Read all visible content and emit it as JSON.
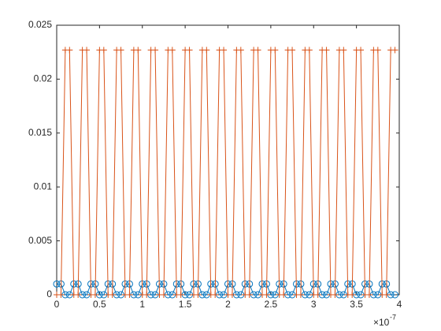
{
  "chart_data": {
    "type": "line",
    "x": [
      0,
      5e-09,
      1e-08,
      1.5e-08,
      2e-08,
      2.5e-08,
      3e-08,
      3.5e-08,
      4e-08,
      4.5e-08,
      5e-08,
      5.5e-08,
      6e-08,
      6.5e-08,
      7e-08,
      7.5e-08,
      8e-08,
      8.5e-08,
      9e-08,
      9.5e-08,
      1e-07,
      1.05e-07,
      1.1e-07,
      1.15e-07,
      1.2e-07,
      1.25e-07,
      1.3e-07,
      1.35e-07,
      1.4e-07,
      1.45e-07,
      1.5e-07,
      1.55e-07,
      1.6e-07,
      1.65e-07,
      1.7e-07,
      1.75e-07,
      1.8e-07,
      1.85e-07,
      1.9e-07,
      1.95e-07,
      2e-07,
      2.05e-07,
      2.1e-07,
      2.15e-07,
      2.2e-07,
      2.25e-07,
      2.3e-07,
      2.35e-07,
      2.4e-07,
      2.45e-07,
      2.5e-07,
      2.55e-07,
      2.6e-07,
      2.65e-07,
      2.7e-07,
      2.75e-07,
      2.8e-07,
      2.85e-07,
      2.9e-07,
      2.95e-07,
      3e-07,
      3.05e-07,
      3.1e-07,
      3.15e-07,
      3.2e-07,
      3.25e-07,
      3.3e-07,
      3.35e-07,
      3.4e-07,
      3.45e-07,
      3.5e-07,
      3.55e-07,
      3.6e-07,
      3.65e-07,
      3.7e-07,
      3.75e-07,
      3.8e-07,
      3.85e-07,
      3.9e-07,
      3.95e-07
    ],
    "series": [
      {
        "color": "#0072bd",
        "marker": "o",
        "values": [
          0.001,
          0.001,
          0,
          0,
          0.001,
          0.001,
          0,
          0,
          0.001,
          0.001,
          0,
          0,
          0.001,
          0.001,
          0,
          0,
          0.001,
          0.001,
          0,
          0,
          0.001,
          0.001,
          0,
          0,
          0.001,
          0.001,
          0,
          0,
          0.001,
          0.001,
          0,
          0,
          0.001,
          0.001,
          0,
          0,
          0.001,
          0.001,
          0,
          0,
          0.001,
          0.001,
          0,
          0,
          0.001,
          0.001,
          0,
          0,
          0.001,
          0.001,
          0,
          0,
          0.001,
          0.001,
          0,
          0,
          0.001,
          0.001,
          0,
          0,
          0.001,
          0.001,
          0,
          0,
          0.001,
          0.001,
          0,
          0,
          0.001,
          0.001,
          0,
          0,
          0.001,
          0.001,
          0,
          0,
          0.001,
          0.001,
          0,
          0
        ]
      },
      {
        "color": "#d95319",
        "marker": "+",
        "values": [
          0,
          0,
          0.0227,
          0.0227,
          0,
          0,
          0.0227,
          0.0227,
          0,
          0,
          0.0227,
          0.0227,
          0,
          0,
          0.0227,
          0.0227,
          0,
          0,
          0.0227,
          0.0227,
          0,
          0,
          0.0227,
          0.0227,
          0,
          0,
          0.0227,
          0.0227,
          0,
          0,
          0.0227,
          0.0227,
          0,
          0,
          0.0227,
          0.0227,
          0,
          0,
          0.0227,
          0.0227,
          0,
          0,
          0.0227,
          0.0227,
          0,
          0,
          0.0227,
          0.0227,
          0,
          0,
          0.0227,
          0.0227,
          0,
          0,
          0.0227,
          0.0227,
          0,
          0,
          0.0227,
          0.0227,
          0,
          0,
          0.0227,
          0.0227,
          0,
          0,
          0.0227,
          0.0227,
          0,
          0,
          0.0227,
          0.0227,
          0,
          0,
          0.0227,
          0.0227,
          0,
          0,
          0.0227,
          0.0227
        ]
      }
    ],
    "xlim": [
      0,
      4e-07
    ],
    "xticks": [
      {
        "value": 0,
        "label": "0"
      },
      {
        "value": 5e-08,
        "label": "0.5"
      },
      {
        "value": 1e-07,
        "label": "1"
      },
      {
        "value": 1.5e-07,
        "label": "1.5"
      },
      {
        "value": 2e-07,
        "label": "2"
      },
      {
        "value": 2.5e-07,
        "label": "2.5"
      },
      {
        "value": 3e-07,
        "label": "3"
      },
      {
        "value": 3.5e-07,
        "label": "3.5"
      },
      {
        "value": 4e-07,
        "label": "4"
      }
    ],
    "x_multiplier": "×10",
    "x_exponent": "-7",
    "ylim": [
      0,
      0.025
    ],
    "yticks": [
      0,
      0.005,
      0.01,
      0.015,
      0.02,
      0.025
    ],
    "grid": false
  }
}
